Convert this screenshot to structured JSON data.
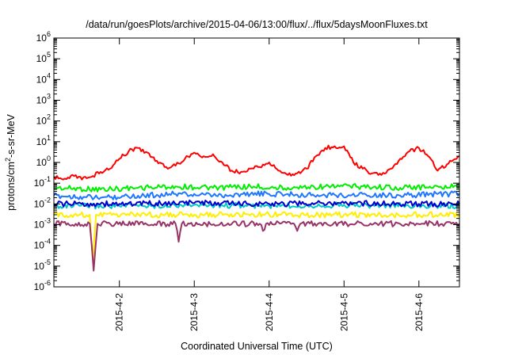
{
  "chart_data": {
    "type": "line",
    "title": "/data/run/goesPlots/archive/2015-04-06/13:00/flux/../flux/5daysMoonFluxes.txt",
    "xlabel": "Coordinated Universal Time (UTC)",
    "ylabel_parts": [
      "protons/cm",
      "2",
      "-s-sr-MeV"
    ],
    "y_scale": "log",
    "ylim": [
      1e-06,
      1000000.0
    ],
    "y_ticks": [
      {
        "base": "10",
        "exp": "-6",
        "value": 1e-06
      },
      {
        "base": "10",
        "exp": "-5",
        "value": 1e-05
      },
      {
        "base": "10",
        "exp": "-4",
        "value": 0.0001
      },
      {
        "base": "10",
        "exp": "-3",
        "value": 0.001
      },
      {
        "base": "10",
        "exp": "-2",
        "value": 0.01
      },
      {
        "base": "10",
        "exp": "-1",
        "value": 0.1
      },
      {
        "base": "10",
        "exp": "0",
        "value": 1
      },
      {
        "base": "10",
        "exp": "1",
        "value": 10
      },
      {
        "base": "10",
        "exp": "2",
        "value": 100
      },
      {
        "base": "10",
        "exp": "3",
        "value": 1000
      },
      {
        "base": "10",
        "exp": "4",
        "value": 10000
      },
      {
        "base": "10",
        "exp": "5",
        "value": 100000
      },
      {
        "base": "10",
        "exp": "6",
        "value": 1000000
      }
    ],
    "x_start": "2015-04-01 03:00",
    "x_end": "2015-04-06 13:00",
    "x_ticks": [
      {
        "label": "2015-4-2",
        "value": "2015-04-02 00:00"
      },
      {
        "label": "2015-4-3",
        "value": "2015-04-03 00:00"
      },
      {
        "label": "2015-4-4",
        "value": "2015-04-04 00:00"
      },
      {
        "label": "2015-4-5",
        "value": "2015-04-05 00:00"
      },
      {
        "label": "2015-4-6",
        "value": "2015-04-06 00:00"
      }
    ],
    "grid": false,
    "legend": "none",
    "series": [
      {
        "color": "#ff0000",
        "points": [
          [
            "2015-04-01 03:00",
            0.2
          ],
          [
            "2015-04-01 06:00",
            0.15
          ],
          [
            "2015-04-01 09:00",
            0.25
          ],
          [
            "2015-04-01 12:00",
            0.15
          ],
          [
            "2015-04-01 15:00",
            0.2
          ],
          [
            "2015-04-01 18:00",
            0.35
          ],
          [
            "2015-04-01 21:00",
            0.5
          ],
          [
            "2015-04-02 00:00",
            1.5
          ],
          [
            "2015-04-02 03:00",
            3.5
          ],
          [
            "2015-04-02 06:00",
            5.0
          ],
          [
            "2015-04-02 09:00",
            3.0
          ],
          [
            "2015-04-02 12:00",
            1.2
          ],
          [
            "2015-04-02 15:00",
            0.6
          ],
          [
            "2015-04-02 18:00",
            0.7
          ],
          [
            "2015-04-02 21:00",
            1.5
          ],
          [
            "2015-04-03 00:00",
            3.0
          ],
          [
            "2015-04-03 03:00",
            2.0
          ],
          [
            "2015-04-03 06:00",
            2.5
          ],
          [
            "2015-04-03 09:00",
            1.0
          ],
          [
            "2015-04-03 12:00",
            0.4
          ],
          [
            "2015-04-03 15:00",
            0.35
          ],
          [
            "2015-04-03 18:00",
            0.5
          ],
          [
            "2015-04-03 21:00",
            0.6
          ],
          [
            "2015-04-04 00:00",
            1.0
          ],
          [
            "2015-04-04 03:00",
            0.4
          ],
          [
            "2015-04-04 06:00",
            0.25
          ],
          [
            "2015-04-04 09:00",
            0.3
          ],
          [
            "2015-04-04 12:00",
            0.5
          ],
          [
            "2015-04-04 15:00",
            2.0
          ],
          [
            "2015-04-04 18:00",
            5.0
          ],
          [
            "2015-04-04 21:00",
            6.0
          ],
          [
            "2015-04-05 00:00",
            6.0
          ],
          [
            "2015-04-05 03:00",
            1.0
          ],
          [
            "2015-04-05 06:00",
            0.5
          ],
          [
            "2015-04-05 09:00",
            0.3
          ],
          [
            "2015-04-05 12:00",
            0.25
          ],
          [
            "2015-04-05 15:00",
            0.5
          ],
          [
            "2015-04-05 18:00",
            1.5
          ],
          [
            "2015-04-05 21:00",
            3.5
          ],
          [
            "2015-04-06 00:00",
            5.0
          ],
          [
            "2015-04-06 03:00",
            2.0
          ],
          [
            "2015-04-06 06:00",
            0.4
          ],
          [
            "2015-04-06 09:00",
            0.8
          ],
          [
            "2015-04-06 11:00",
            1.3
          ],
          [
            "2015-04-06 13:00",
            2.0
          ]
        ]
      },
      {
        "color": "#00ee00",
        "points": [
          [
            "2015-04-01 03:00",
            0.06
          ],
          [
            "2015-04-01 18:00",
            0.05
          ],
          [
            "2015-04-02 06:00",
            0.06
          ],
          [
            "2015-04-02 18:00",
            0.07
          ],
          [
            "2015-04-03 06:00",
            0.06
          ],
          [
            "2015-04-03 18:00",
            0.07
          ],
          [
            "2015-04-04 06:00",
            0.06
          ],
          [
            "2015-04-04 18:00",
            0.07
          ],
          [
            "2015-04-05 06:00",
            0.07
          ],
          [
            "2015-04-05 18:00",
            0.06
          ],
          [
            "2015-04-06 06:00",
            0.07
          ],
          [
            "2015-04-06 13:00",
            0.07
          ]
        ]
      },
      {
        "color": "#1e78ff",
        "points": [
          [
            "2015-04-01 03:00",
            0.025
          ],
          [
            "2015-04-01 18:00",
            0.02
          ],
          [
            "2015-04-02 06:00",
            0.025
          ],
          [
            "2015-04-02 18:00",
            0.03
          ],
          [
            "2015-04-03 06:00",
            0.025
          ],
          [
            "2015-04-03 18:00",
            0.03
          ],
          [
            "2015-04-04 06:00",
            0.03
          ],
          [
            "2015-04-04 18:00",
            0.025
          ],
          [
            "2015-04-05 06:00",
            0.03
          ],
          [
            "2015-04-05 18:00",
            0.025
          ],
          [
            "2015-04-06 06:00",
            0.03
          ],
          [
            "2015-04-06 13:00",
            0.03
          ]
        ]
      },
      {
        "color": "#00c8c8",
        "points": [
          [
            "2015-04-01 03:00",
            0.008
          ],
          [
            "2015-04-02 00:00",
            0.008
          ],
          [
            "2015-04-03 00:00",
            0.009
          ],
          [
            "2015-04-04 00:00",
            0.008
          ],
          [
            "2015-04-05 00:00",
            0.009
          ],
          [
            "2015-04-06 00:00",
            0.008
          ],
          [
            "2015-04-06 13:00",
            0.008
          ]
        ]
      },
      {
        "color": "#0000cc",
        "points": [
          [
            "2015-04-01 03:00",
            0.01
          ],
          [
            "2015-04-02 00:00",
            0.01
          ],
          [
            "2015-04-03 00:00",
            0.011
          ],
          [
            "2015-04-04 00:00",
            0.01
          ],
          [
            "2015-04-05 00:00",
            0.011
          ],
          [
            "2015-04-06 00:00",
            0.01
          ],
          [
            "2015-04-06 13:00",
            0.01
          ]
        ]
      },
      {
        "color": "#ffee00",
        "points": [
          [
            "2015-04-01 03:00",
            0.003
          ],
          [
            "2015-04-01 14:30",
            0.003
          ],
          [
            "2015-04-01 15:30",
            2e-05
          ],
          [
            "2015-04-01 16:30",
            0.003
          ],
          [
            "2015-04-03 00:00",
            0.003
          ],
          [
            "2015-04-04 00:00",
            0.003
          ],
          [
            "2015-04-05 00:00",
            0.003
          ],
          [
            "2015-04-06 00:00",
            0.003
          ],
          [
            "2015-04-06 13:00",
            0.003
          ]
        ]
      },
      {
        "color": "#993366",
        "points": [
          [
            "2015-04-01 03:00",
            0.0011
          ],
          [
            "2015-04-01 14:30",
            0.0011
          ],
          [
            "2015-04-01 15:45",
            6e-06
          ],
          [
            "2015-04-01 17:00",
            0.0011
          ],
          [
            "2015-04-02 18:00",
            0.0011
          ],
          [
            "2015-04-02 19:00",
            0.00015
          ],
          [
            "2015-04-02 20:00",
            0.0011
          ],
          [
            "2015-04-03 21:00",
            0.0011
          ],
          [
            "2015-04-03 22:00",
            0.0005
          ],
          [
            "2015-04-03 23:00",
            0.0011
          ],
          [
            "2015-04-04 08:00",
            0.0011
          ],
          [
            "2015-04-04 09:00",
            0.0005
          ],
          [
            "2015-04-04 10:00",
            0.0011
          ],
          [
            "2015-04-06 13:00",
            0.0011
          ]
        ]
      }
    ]
  }
}
